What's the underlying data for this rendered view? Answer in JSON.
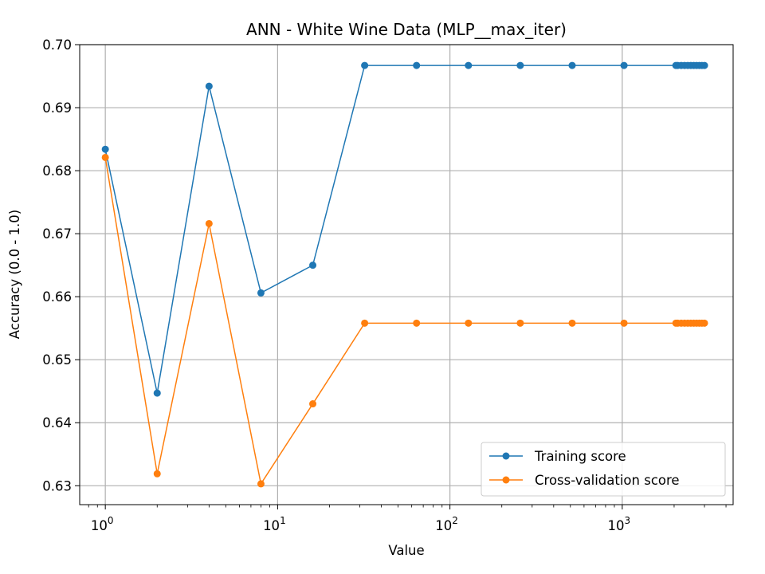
{
  "chart_data": {
    "type": "line",
    "title": "ANN - White Wine Data (MLP__max_iter)",
    "xlabel": "Value",
    "ylabel": "Accuracy (0.0 - 1.0)",
    "xscale": "log",
    "xlim": [
      0.71,
      4400
    ],
    "ylim": [
      0.627,
      0.7
    ],
    "grid": true,
    "legend_position": "lower-right",
    "x_ticks": [
      {
        "base": "10",
        "exp": "0",
        "value": 1
      },
      {
        "base": "10",
        "exp": "1",
        "value": 10
      },
      {
        "base": "10",
        "exp": "2",
        "value": 100
      },
      {
        "base": "10",
        "exp": "3",
        "value": 1000
      }
    ],
    "y_ticks": [
      "0.63",
      "0.64",
      "0.65",
      "0.66",
      "0.67",
      "0.68",
      "0.69",
      "0.70"
    ],
    "x": [
      1,
      2,
      4,
      8,
      16,
      32,
      64,
      128,
      256,
      512,
      1024,
      2048,
      2100,
      2200,
      2300,
      2400,
      2500,
      2600,
      2700,
      2800,
      2900,
      3000
    ],
    "series": [
      {
        "name": "Training score",
        "color": "#1f77b4",
        "values": [
          0.6834,
          0.6447,
          0.6934,
          0.6606,
          0.665,
          0.6967,
          0.6967,
          0.6967,
          0.6967,
          0.6967,
          0.6967,
          0.6967,
          0.6967,
          0.6967,
          0.6967,
          0.6967,
          0.6967,
          0.6967,
          0.6967,
          0.6967,
          0.6967,
          0.6967
        ]
      },
      {
        "name": "Cross-validation score",
        "color": "#ff7f0e",
        "values": [
          0.6821,
          0.6319,
          0.6716,
          0.6303,
          0.643,
          0.6558,
          0.6558,
          0.6558,
          0.6558,
          0.6558,
          0.6558,
          0.6558,
          0.6558,
          0.6558,
          0.6558,
          0.6558,
          0.6558,
          0.6558,
          0.6558,
          0.6558,
          0.6558,
          0.6558
        ]
      }
    ]
  }
}
